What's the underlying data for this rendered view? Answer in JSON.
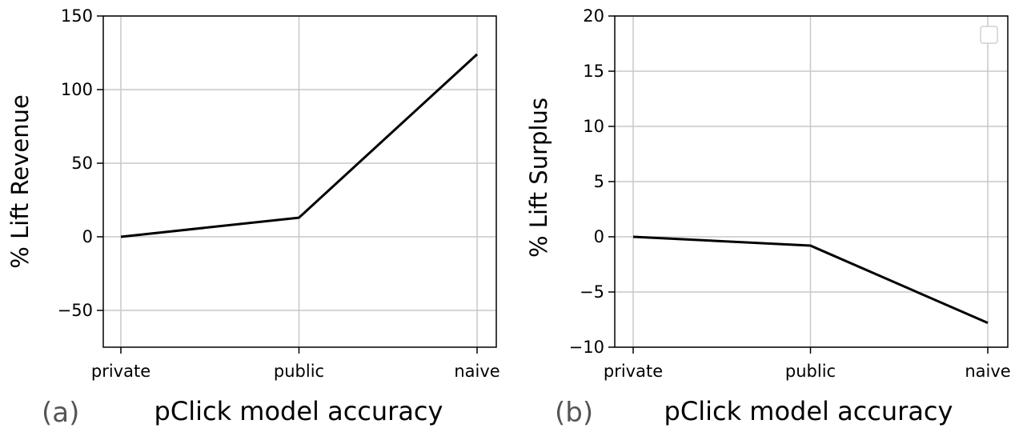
{
  "chart_data": [
    {
      "type": "line",
      "panel_label": "(a)",
      "categories": [
        "private",
        "public",
        "naive"
      ],
      "series": [
        {
          "values": [
            0,
            13,
            124
          ]
        }
      ],
      "xlabel": "pClick model accuracy",
      "ylabel": "% Lift Revenue",
      "ylim": [
        -75,
        150
      ],
      "yticks": [
        -50,
        0,
        50,
        100,
        150
      ],
      "ytick_labels": [
        "−50",
        "0",
        "50",
        "100",
        "150"
      ],
      "grid": true,
      "line_color": "#000000"
    },
    {
      "type": "line",
      "panel_label": "(b)",
      "categories": [
        "private",
        "public",
        "naive"
      ],
      "series": [
        {
          "values": [
            0,
            -0.8,
            -7.8
          ]
        }
      ],
      "xlabel": "pClick model accuracy",
      "ylabel": "% Lift Surplus",
      "ylim": [
        -10,
        20
      ],
      "yticks": [
        -10,
        -5,
        0,
        5,
        10,
        15,
        20
      ],
      "ytick_labels": [
        "−10",
        "−5",
        "0",
        "5",
        "10",
        "15",
        "20"
      ],
      "grid": true,
      "legend": "top-right",
      "line_color": "#000000"
    }
  ]
}
